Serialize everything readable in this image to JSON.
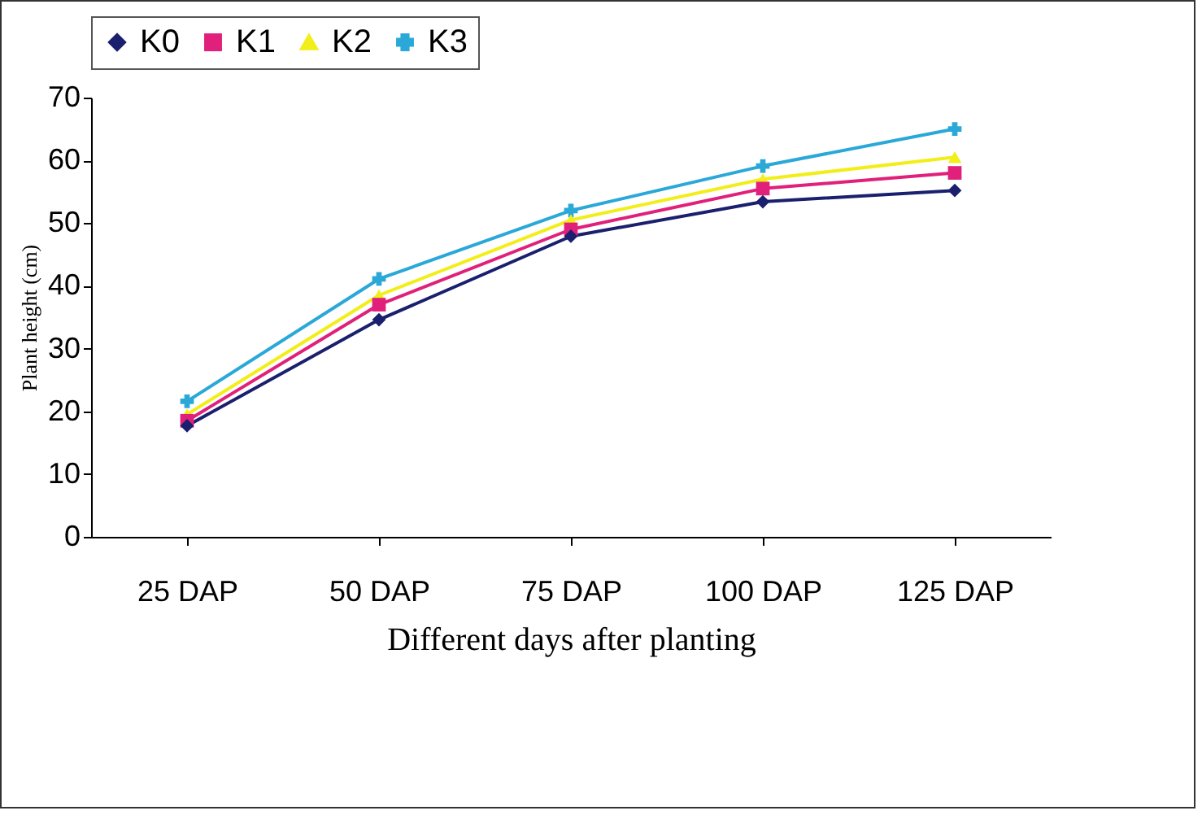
{
  "chart_data": {
    "type": "line",
    "xlabel": "Different days after planting",
    "ylabel": "Plant height (cm)",
    "categories": [
      "25 DAP",
      "50 DAP",
      "75 DAP",
      "100 DAP",
      "125 DAP"
    ],
    "series": [
      {
        "name": "K0",
        "color": "#1a1f6e",
        "marker": "diamond",
        "values": [
          17.7,
          34.6,
          47.9,
          53.4,
          55.2
        ]
      },
      {
        "name": "K1",
        "color": "#e0207a",
        "marker": "square",
        "values": [
          18.5,
          37,
          49,
          55.5,
          58
        ]
      },
      {
        "name": "K2",
        "color": "#f2ee1a",
        "marker": "triangle",
        "values": [
          19.5,
          38.5,
          50.5,
          57,
          60.5
        ]
      },
      {
        "name": "K3",
        "color": "#2aa8d8",
        "marker": "cross",
        "values": [
          21.6,
          41.1,
          52,
          59.1,
          65
        ]
      }
    ],
    "ylim": [
      0,
      70
    ],
    "yticks": [
      0,
      10,
      20,
      30,
      40,
      50,
      60,
      70
    ],
    "grid": false,
    "legend": "top"
  }
}
